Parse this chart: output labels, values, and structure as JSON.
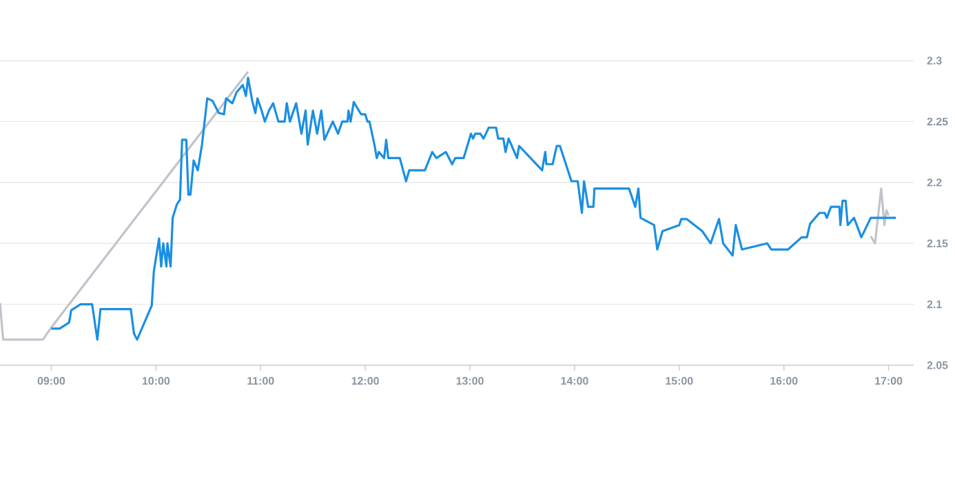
{
  "chart_data": {
    "type": "line",
    "xlim": [
      8.51,
      17.24
    ],
    "ylim": [
      2.05,
      2.3
    ],
    "xticks": [
      {
        "value": 9,
        "label": "09:00"
      },
      {
        "value": 10,
        "label": "10:00"
      },
      {
        "value": 11,
        "label": "11:00"
      },
      {
        "value": 12,
        "label": "12:00"
      },
      {
        "value": 13,
        "label": "13:00"
      },
      {
        "value": 14,
        "label": "14:00"
      },
      {
        "value": 15,
        "label": "15:00"
      },
      {
        "value": 16,
        "label": "16:00"
      },
      {
        "value": 17,
        "label": "17:00"
      }
    ],
    "yticks": [
      2.05,
      2.1,
      2.15,
      2.2,
      2.25,
      2.3
    ],
    "grid": "y",
    "series": [
      {
        "color": "#c0c4ca",
        "x": [
          8.51,
          8.54,
          8.92,
          9.0,
          10.88,
          13.0,
          16.83,
          16.87,
          16.93,
          16.96,
          16.98,
          17.0
        ],
        "values": [
          2.101,
          2.071,
          2.071,
          2.081,
          2.291,
          null,
          2.156,
          2.15,
          2.195,
          2.165,
          2.177,
          2.173
        ]
      },
      {
        "color": "#1a8fe3",
        "x": [
          9.0,
          9.08,
          9.17,
          9.19,
          9.28,
          9.39,
          9.44,
          9.47,
          9.76,
          9.79,
          9.82,
          9.96,
          9.98,
          10.03,
          10.05,
          10.07,
          10.1,
          10.11,
          10.14,
          10.16,
          10.2,
          10.23,
          10.25,
          10.29,
          10.31,
          10.33,
          10.36,
          10.4,
          10.44,
          10.49,
          10.54,
          10.6,
          10.65,
          10.67,
          10.73,
          10.77,
          10.83,
          10.86,
          10.88,
          10.92,
          10.95,
          10.97,
          11.01,
          11.04,
          11.08,
          11.12,
          11.17,
          11.23,
          11.25,
          11.28,
          11.34,
          11.39,
          11.43,
          11.45,
          11.5,
          11.54,
          11.58,
          11.61,
          11.69,
          11.74,
          11.78,
          11.83,
          11.84,
          11.86,
          11.89,
          11.96,
          12.0,
          12.02,
          12.04,
          12.09,
          12.11,
          12.13,
          12.18,
          12.2,
          12.22,
          12.33,
          12.39,
          12.42,
          12.57,
          12.64,
          12.68,
          12.77,
          12.83,
          12.86,
          12.94,
          13.01,
          13.03,
          13.05,
          13.1,
          13.13,
          13.18,
          13.25,
          13.27,
          13.32,
          13.34,
          13.37,
          13.45,
          13.47,
          13.69,
          13.72,
          13.73,
          13.79,
          13.83,
          13.86,
          13.97,
          14.03,
          14.07,
          14.09,
          14.13,
          14.18,
          14.19,
          14.52,
          14.58,
          14.61,
          14.63,
          14.76,
          14.79,
          14.84,
          15.0,
          15.02,
          15.07,
          15.22,
          15.3,
          15.38,
          15.42,
          15.51,
          15.54,
          15.6,
          15.84,
          15.88,
          16.04,
          16.17,
          16.22,
          16.25,
          16.34,
          16.39,
          16.41,
          16.45,
          16.53,
          16.54,
          16.56,
          16.59,
          16.61,
          16.67,
          16.74,
          16.83,
          17.07
        ],
        "values": [
          2.08,
          2.08,
          2.085,
          2.095,
          2.1,
          2.1,
          2.071,
          2.096,
          2.096,
          2.076,
          2.071,
          2.099,
          2.127,
          2.154,
          2.131,
          2.15,
          2.131,
          2.15,
          2.131,
          2.171,
          2.182,
          2.186,
          2.235,
          2.235,
          2.19,
          2.19,
          2.218,
          2.21,
          2.231,
          2.269,
          2.267,
          2.257,
          2.256,
          2.269,
          2.265,
          2.274,
          2.28,
          2.271,
          2.286,
          2.267,
          2.257,
          2.269,
          2.259,
          2.25,
          2.259,
          2.265,
          2.25,
          2.25,
          2.265,
          2.25,
          2.265,
          2.24,
          2.259,
          2.231,
          2.259,
          2.24,
          2.259,
          2.235,
          2.25,
          2.24,
          2.25,
          2.25,
          2.259,
          2.25,
          2.266,
          2.256,
          2.256,
          2.25,
          2.25,
          2.23,
          2.22,
          2.225,
          2.22,
          2.235,
          2.22,
          2.22,
          2.201,
          2.21,
          2.21,
          2.225,
          2.22,
          2.225,
          2.215,
          2.22,
          2.22,
          2.24,
          2.236,
          2.24,
          2.24,
          2.236,
          2.245,
          2.245,
          2.236,
          2.236,
          2.225,
          2.236,
          2.22,
          2.23,
          2.21,
          2.225,
          2.215,
          2.215,
          2.23,
          2.23,
          2.201,
          2.201,
          2.175,
          2.201,
          2.18,
          2.18,
          2.195,
          2.195,
          2.18,
          2.195,
          2.171,
          2.165,
          2.145,
          2.16,
          2.165,
          2.17,
          2.17,
          2.16,
          2.15,
          2.17,
          2.15,
          2.14,
          2.165,
          2.145,
          2.15,
          2.145,
          2.145,
          2.155,
          2.155,
          2.166,
          2.175,
          2.175,
          2.171,
          2.18,
          2.18,
          2.165,
          2.185,
          2.185,
          2.165,
          2.171,
          2.155,
          2.171,
          2.171
        ]
      }
    ]
  }
}
